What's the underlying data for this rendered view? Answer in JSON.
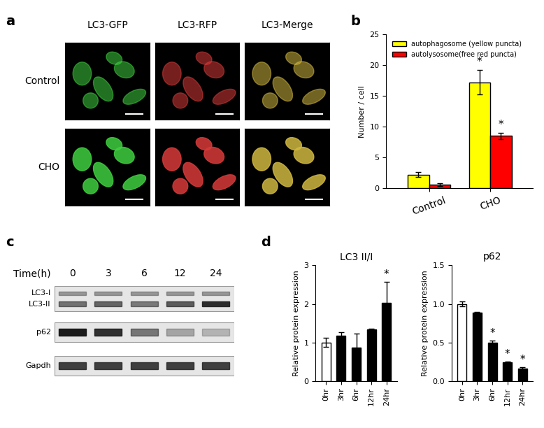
{
  "images": {
    "panel": "a",
    "columns": [
      "LC3-GFP",
      "LC3-RFP",
      "LC3-Merge"
    ],
    "rows": [
      "Control",
      "CHO"
    ]
  },
  "blot": {
    "panel": "c",
    "axis_label": "Time(h)",
    "lanes": [
      "0",
      "3",
      "6",
      "12",
      "24"
    ],
    "rows": [
      "LC3-I",
      "LC3-II",
      "p62",
      "Gapdh"
    ]
  },
  "chart_data": [
    {
      "panel": "b",
      "type": "bar",
      "categories": [
        "Control",
        "CHO"
      ],
      "series": [
        {
          "name": "autophagosome (yellow puncta)",
          "color": "#ffff00",
          "values": [
            2.2,
            17.2
          ],
          "errors": [
            0.4,
            2.0
          ],
          "significance": [
            null,
            "*"
          ]
        },
        {
          "name": "autolysosome(free red puncta)",
          "color": "#ff0000",
          "values": [
            0.6,
            8.5
          ],
          "errors": [
            0.2,
            0.5
          ],
          "significance": [
            null,
            "*"
          ]
        }
      ],
      "y_label": "Number / cell",
      "ylim": [
        0,
        25
      ],
      "yticks": [
        0,
        5,
        10,
        15,
        20,
        25
      ],
      "legend": "upper left"
    },
    {
      "panel": "d",
      "type": "bar",
      "title": "LC3 II/I",
      "categories": [
        "0hr",
        "3hr",
        "6hr",
        "12hr",
        "24hr"
      ],
      "values": [
        1.0,
        1.18,
        0.87,
        1.33,
        2.02
      ],
      "errors": [
        0.12,
        0.08,
        0.35,
        0.02,
        0.55
      ],
      "significance": [
        null,
        null,
        null,
        null,
        "*"
      ],
      "colors": [
        "#ffffff",
        "#000000",
        "#000000",
        "#000000",
        "#000000"
      ],
      "y_label": "Relative protein expression",
      "ylim": [
        0,
        3
      ],
      "yticks": [
        0,
        1,
        2,
        3
      ]
    },
    {
      "type": "bar",
      "title": "p62",
      "categories": [
        "0hr",
        "3hr",
        "6hr",
        "12hr",
        "24hr"
      ],
      "values": [
        1.0,
        0.89,
        0.5,
        0.24,
        0.16
      ],
      "errors": [
        0.03,
        0.01,
        0.02,
        0.01,
        0.015
      ],
      "significance": [
        null,
        null,
        "*",
        "*",
        "*"
      ],
      "colors": [
        "#ffffff",
        "#000000",
        "#000000",
        "#000000",
        "#000000"
      ],
      "y_label": "Relative protein expression",
      "ylim": [
        0,
        1.5
      ],
      "yticks": [
        {
          "value": 0,
          "label": "0.0"
        },
        {
          "value": 0.5,
          "label": "0.5"
        },
        {
          "value": 1.0,
          "label": "1.0"
        },
        {
          "value": 1.5,
          "label": "1.5"
        }
      ]
    }
  ]
}
